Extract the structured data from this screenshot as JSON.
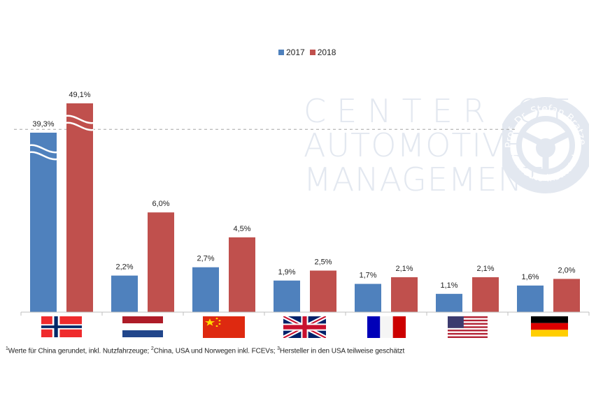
{
  "chart_data": {
    "type": "bar",
    "title": "",
    "xlabel": "",
    "ylabel": "",
    "categories": [
      "Norwegen",
      "Niederlande",
      "China",
      "Großbritannien",
      "Frankreich",
      "USA",
      "Deutschland"
    ],
    "category_icons": [
      "flag-norway",
      "flag-netherlands",
      "flag-china",
      "flag-uk",
      "flag-france",
      "flag-usa",
      "flag-germany"
    ],
    "series": [
      {
        "name": "2017",
        "color": "#4f81bd",
        "values": [
          39.3,
          2.2,
          2.7,
          1.9,
          1.7,
          1.1,
          1.6
        ],
        "labels": [
          "39,3%",
          "2,2%",
          "2,7%",
          "1,9%",
          "1,7%",
          "1,1%",
          "1,6%"
        ]
      },
      {
        "name": "2018",
        "color": "#c0504d",
        "values": [
          49.1,
          6.0,
          4.5,
          2.5,
          2.1,
          2.1,
          2.0
        ],
        "labels": [
          "49,1%",
          "6,0%",
          "4,5%",
          "2,5%",
          "2,1%",
          "2,1%",
          "2,0%"
        ]
      }
    ],
    "axis_break": {
      "applies_to": [
        "Norwegen"
      ],
      "note": "Bars for Norway are truncated (broken axis)"
    },
    "reference_line": {
      "style": "dashed",
      "value_approx": 11.0
    },
    "ylim": [
      0,
      11.5
    ],
    "grid": false,
    "legend_position": "top-center"
  },
  "legend": {
    "items": [
      {
        "label": "2017",
        "color": "#4f81bd"
      },
      {
        "label": "2018",
        "color": "#c0504d"
      }
    ]
  },
  "footnote": {
    "parts": [
      {
        "sup": "1",
        "text": "Werte für China gerundet, inkl. Nutzfahrzeuge; "
      },
      {
        "sup": "2",
        "text": "China, USA und Norwegen inkl. FCEVs; "
      },
      {
        "sup": "3",
        "text": "Hersteller in den USA teilweise geschätzt"
      }
    ]
  },
  "watermark": {
    "lines": [
      "CENTER OF",
      "AUTOMOTIVE",
      "MANAGEMENT"
    ],
    "ring_text_top": "Prof. Dr. Stefan Bratzel",
    "ring_text_bottom": "www.auto-institut.de",
    "color": "#e3e8f0"
  }
}
